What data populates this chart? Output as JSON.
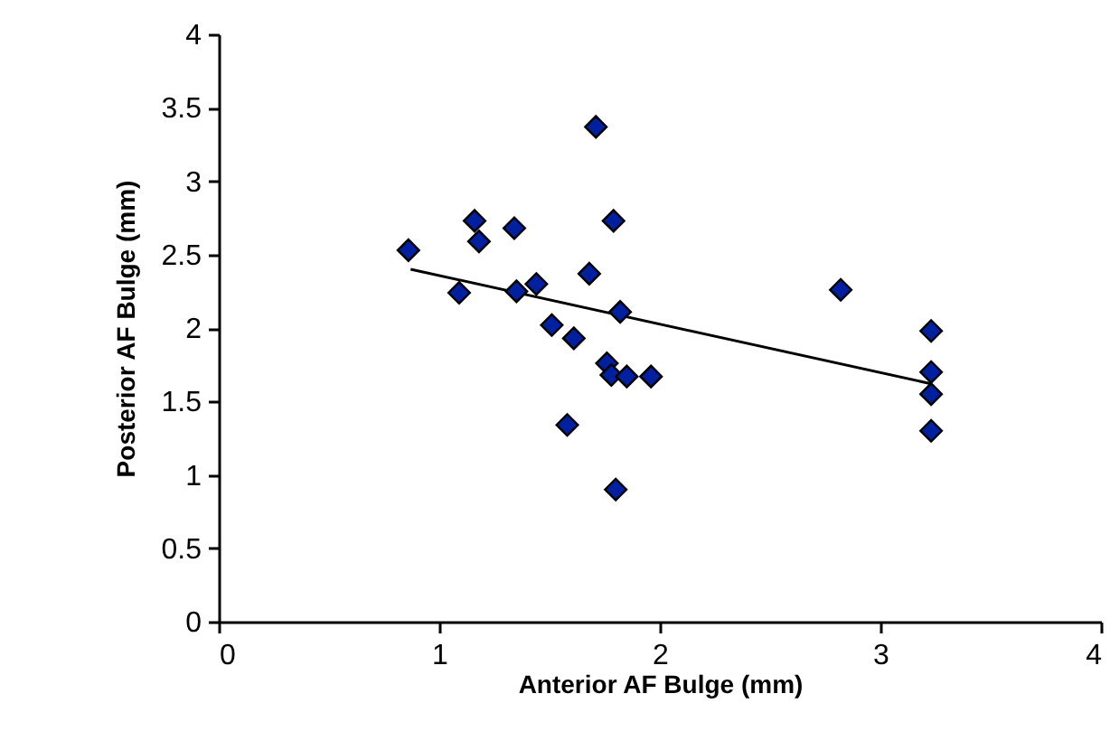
{
  "chart_data": {
    "type": "scatter",
    "xlabel": "Anterior AF Bulge (mm)",
    "ylabel": "Posterior AF Bulge (mm)",
    "marker": "diamond",
    "grid": false,
    "xlim": [
      0,
      4
    ],
    "xticks": [
      0,
      1,
      2,
      3,
      4
    ],
    "ylim": [
      0,
      4
    ],
    "yticks": [
      0,
      0.5,
      1,
      1.5,
      2,
      2.5,
      3,
      3.5,
      4
    ],
    "series": [
      {
        "color": "#0020a0",
        "x": [
          1.71,
          0.86,
          1.16,
          1.18,
          1.34,
          1.79,
          1.09,
          1.35,
          1.44,
          1.68,
          1.82,
          1.51,
          1.61,
          1.76,
          1.78,
          1.85,
          1.96,
          1.58,
          1.8,
          2.82,
          3.23,
          3.23,
          3.23,
          3.23
        ],
        "values": [
          3.37,
          2.53,
          2.73,
          2.59,
          2.68,
          2.73,
          2.24,
          2.25,
          2.3,
          2.37,
          2.11,
          2.02,
          1.93,
          1.76,
          1.68,
          1.67,
          1.67,
          1.34,
          0.9,
          2.26,
          1.98,
          1.7,
          1.55,
          1.3
        ]
      },
      {
        "type": "line",
        "marker": "none",
        "color": "#000000",
        "x": [
          0.87,
          3.23
        ],
        "values": [
          2.4,
          1.62
        ]
      }
    ]
  }
}
